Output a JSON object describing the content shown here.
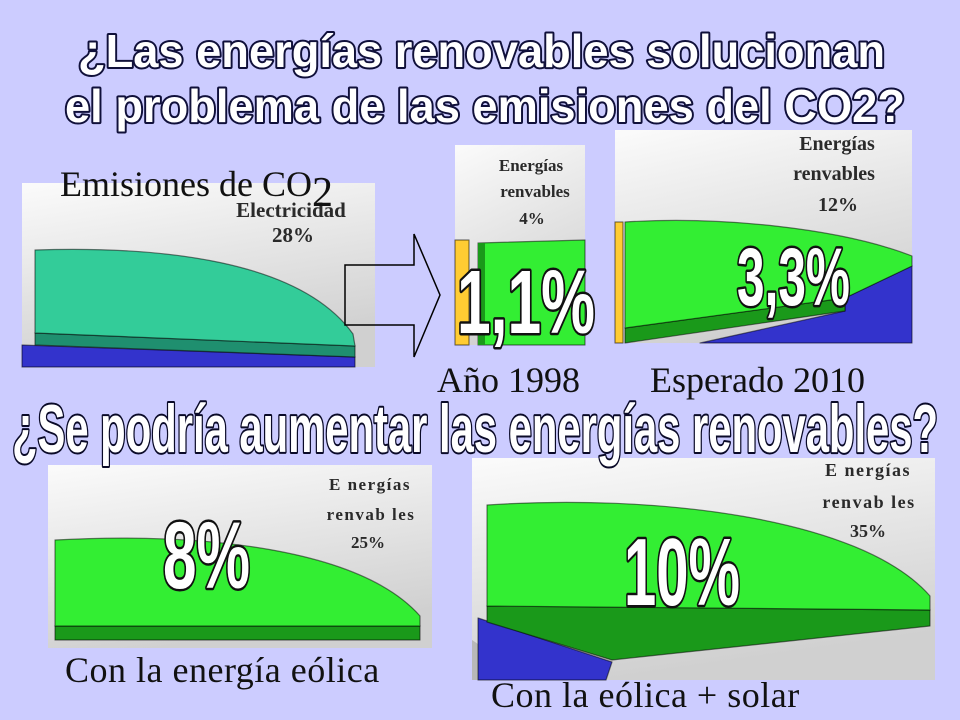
{
  "slide": {
    "background": "#ccccff",
    "title_line1": "¿Las energías renovables solucionan",
    "title_line2": "el problema de las emisiones del CO2?",
    "subtitle": "¿Se podría aumentar las energías renovables?"
  },
  "colors": {
    "teal": "#33cc99",
    "teal_dark": "#1f8f6f",
    "green": "#33ee33",
    "green_dark": "#1a991a",
    "blue": "#3333cc",
    "yellow": "#ffcc33",
    "gray": "#b8b8b8"
  },
  "emissions": {
    "caption": "Emisiones de CO",
    "caption_subscript": "2",
    "slice_label": "Electricidad",
    "slice_value": "28%"
  },
  "year_1998": {
    "caption": "Año 1998",
    "slice_label_line1": "Energías",
    "slice_label_line2": "renvables",
    "slice_value": "4%",
    "highlight": "1,1%"
  },
  "expected_2010": {
    "caption": "Esperado 2010",
    "slice_label_line1": "Energías",
    "slice_label_line2": "renvables",
    "slice_value": "12%",
    "highlight": "3,3%"
  },
  "wind": {
    "caption": "Con la energía eólica",
    "slice_label_line1": "E nergías",
    "slice_label_line2": "renvab les",
    "slice_value": "25%",
    "highlight": "8%"
  },
  "wind_solar": {
    "caption": "Con la eólica + solar",
    "slice_label_line1": "E nergías",
    "slice_label_line2": "renvab les",
    "slice_value": "35%",
    "highlight": "10%"
  }
}
